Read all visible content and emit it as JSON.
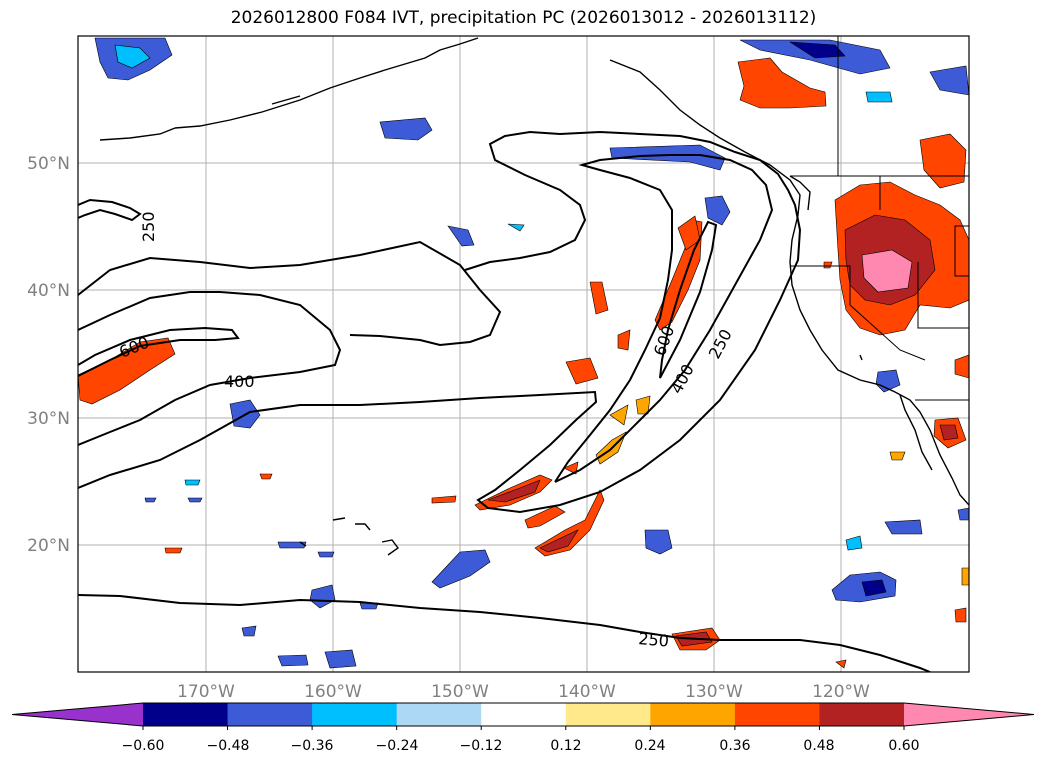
{
  "title": "2026012800 F084 IVT, precipitation PC (2026013012 - 2026013112)",
  "map": {
    "lat_labels": [
      "50°N",
      "40°N",
      "30°N",
      "20°N"
    ],
    "lon_labels": [
      "170°W",
      "160°W",
      "150°W",
      "140°W",
      "130°W",
      "120°W"
    ],
    "contour_labels": [
      "250",
      "600",
      "400",
      "600",
      "400",
      "250",
      "250"
    ],
    "colors": {
      "purple": "#9932cc",
      "navy": "#00008b",
      "royal": "#3d5bd6",
      "deepsky": "#00bfff",
      "lightblue": "#add8f5",
      "white": "#ffffff",
      "khaki": "#ffe98a",
      "orange": "#ffa500",
      "orangered": "#ff4500",
      "firebrick": "#b22222",
      "pink": "#ff88b0"
    }
  },
  "colorbar": {
    "tick_labels": [
      "−0.60",
      "−0.48",
      "−0.36",
      "−0.24",
      "−0.12",
      "0.12",
      "0.24",
      "0.36",
      "0.48",
      "0.60"
    ],
    "colors": [
      "#9932cc",
      "#00008b",
      "#3d5bd6",
      "#00bfff",
      "#add8f5",
      "#ffffff",
      "#ffe98a",
      "#ffa500",
      "#ff4500",
      "#b22222",
      "#ff88b0"
    ]
  }
}
